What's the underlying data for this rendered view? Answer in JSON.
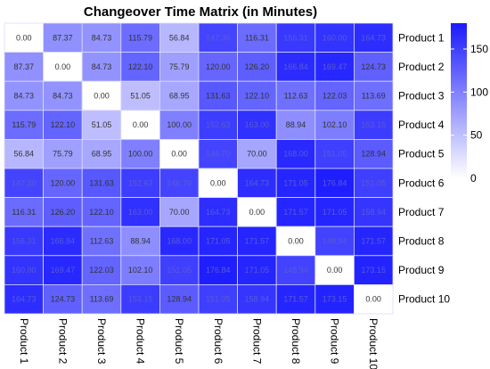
{
  "chart_data": {
    "type": "heatmap",
    "title": "Changeover Time Matrix (in Minutes)",
    "xlabel": "",
    "ylabel": "",
    "rows": [
      "Product 1",
      "Product 2",
      "Product 3",
      "Product 4",
      "Product 5",
      "Product 6",
      "Product 7",
      "Product 8",
      "Product 9",
      "Product 10"
    ],
    "columns": [
      "Product 1",
      "Product 2",
      "Product 3",
      "Product 4",
      "Product 5",
      "Product 6",
      "Product 7",
      "Product 8",
      "Product 9",
      "Product 10"
    ],
    "values": [
      [
        "0.00",
        "87.37",
        "84.73",
        "115.79",
        "56.84",
        "147.30",
        "116.31",
        "156.31",
        "160.00",
        "164.73"
      ],
      [
        "87.37",
        "0.00",
        "84.73",
        "122.10",
        "75.79",
        "120.00",
        "126.20",
        "166.84",
        "169.47",
        "124.73"
      ],
      [
        "84.73",
        "84.73",
        "0.00",
        "51.05",
        "68.95",
        "131.63",
        "122.10",
        "112.63",
        "122.03",
        "113.69"
      ],
      [
        "115.79",
        "122.10",
        "51.05",
        "0.00",
        "100.00",
        "152.63",
        "163.00",
        "88.94",
        "102.10",
        "153.15"
      ],
      [
        "56.84",
        "75.79",
        "68.95",
        "100.00",
        "0.00",
        "146.70",
        "70.00",
        "168.00",
        "151.05",
        "128.94"
      ],
      [
        "147.30",
        "120.00",
        "131.63",
        "152.63",
        "146.70",
        "0.00",
        "164.73",
        "171.05",
        "176.84",
        "151.05"
      ],
      [
        "116.31",
        "126.20",
        "122.10",
        "163.00",
        "70.00",
        "164.73",
        "0.00",
        "171.57",
        "171.05",
        "158.94"
      ],
      [
        "156.31",
        "166.84",
        "112.63",
        "88.94",
        "168.00",
        "171.05",
        "171.57",
        "0.00",
        "148.94",
        "171.57"
      ],
      [
        "160.00",
        "169.47",
        "122.03",
        "102.10",
        "151.05",
        "176.84",
        "171.05",
        "148.94",
        "0.00",
        "173.15"
      ],
      [
        "164.73",
        "124.73",
        "113.69",
        "153.15",
        "128.94",
        "151.05",
        "158.94",
        "171.57",
        "173.15",
        "0.00"
      ]
    ],
    "colorscale": {
      "low": "#ffffff",
      "high": "#1a1aff",
      "min": 0,
      "max": 180
    },
    "legend": {
      "position": "right",
      "ticks": [
        "0",
        "50",
        "100",
        "150"
      ]
    },
    "grid": false
  }
}
